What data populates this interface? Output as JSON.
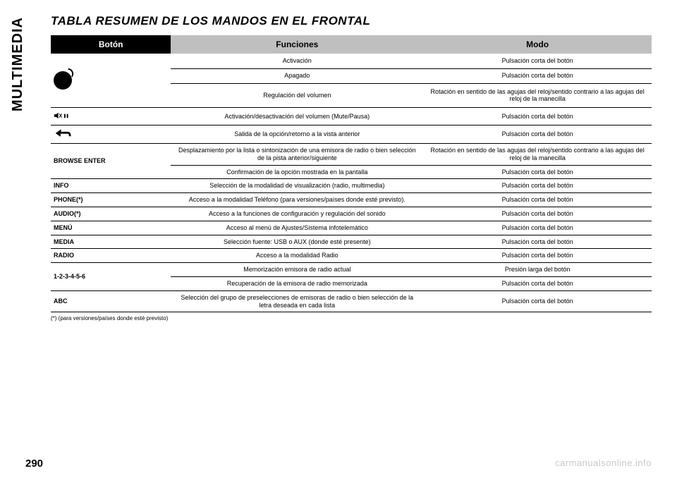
{
  "side_label": "MULTIMEDIA",
  "title": "TABLA RESUMEN DE LOS MANDOS EN EL FRONTAL",
  "page_number": "290",
  "watermark": "carmanualsonline.info",
  "footnote": "(*) (para versiones/países donde esté previsto)",
  "headers": {
    "boton": "Botón",
    "funciones": "Funciones",
    "modo": "Modo"
  },
  "col_widths": {
    "boton": "20%",
    "funciones": "42%",
    "modo": "38%"
  },
  "colors": {
    "header_light": "#bfbfbf",
    "header_dark": "#000000",
    "border": "#000000",
    "watermark": "#c8c8c8"
  },
  "knob_rows": [
    {
      "funcion": "Activación",
      "modo": "Pulsación corta del botón"
    },
    {
      "funcion": "Apagado",
      "modo": "Pulsación corta del botón"
    },
    {
      "funcion": "Regulación del volumen",
      "modo": "Rotación en sentido de las agujas del reloj/sentido contrario a las agujas del reloj de la manecilla"
    }
  ],
  "mute_row": {
    "funcion": "Activación/desactivación del volumen (Mute/Pausa)",
    "modo": "Pulsación corta del botón"
  },
  "back_row": {
    "funcion": "Salida de la opción/retorno a la vista anterior",
    "modo": "Pulsación corta del botón"
  },
  "browse_boton": "BROWSE ENTER",
  "browse_rows": [
    {
      "funcion": "Desplazamiento por la lista o sintonización de una emisora de radio o bien selección de la pista anterior/siguiente",
      "modo": "Rotación en sentido de las agujas del reloj/sentido contrario a las agujas del reloj de la manecilla"
    },
    {
      "funcion": "Confirmación de la opción mostrada en la pantalla",
      "modo": "Pulsación corta del botón"
    }
  ],
  "rows": [
    {
      "boton": "INFO",
      "funcion": "Selección de la modalidad de visualización (radio, multimedia)",
      "modo": "Pulsación corta del botón"
    },
    {
      "boton": "PHONE(*)",
      "funcion": "Acceso a la modalidad Teléfono (para versiones/países donde esté previsto).",
      "modo": "Pulsación corta del botón"
    },
    {
      "boton": "AUDIO(*)",
      "funcion": "Acceso a la funciones de configuración y regulación del sonido",
      "modo": "Pulsación corta del botón"
    },
    {
      "boton": "MENÚ",
      "funcion": "Acceso al menú de Ajustes/Sistema infotelemático",
      "modo": "Pulsación corta del botón"
    },
    {
      "boton": "MEDIA",
      "funcion": "Selección fuente: USB o AUX (donde esté presente)",
      "modo": "Pulsación corta del botón"
    },
    {
      "boton": "RADIO",
      "funcion": "Acceso a la modalidad Radio",
      "modo": "Pulsación corta del botón"
    }
  ],
  "preset_boton": "1-2-3-4-5-6",
  "preset_rows": [
    {
      "funcion": "Memorización emisora de radio actual",
      "modo": "Presión larga del botón"
    },
    {
      "funcion": "Recuperación de la emisora de radio memorizada",
      "modo": "Pulsación corta del botón"
    }
  ],
  "abc_row": {
    "boton": "ABC",
    "funcion": "Selección del grupo de preselecciones de emisoras de radio o bien selección de la letra deseada en cada lista",
    "modo": "Pulsación corta del botón"
  }
}
